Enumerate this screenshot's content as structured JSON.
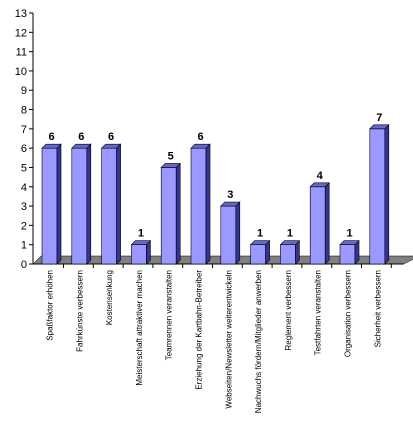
{
  "chart_data": {
    "type": "bar",
    "title": "",
    "xlabel": "",
    "ylabel": "",
    "ylim": [
      0,
      13
    ],
    "yticks": [
      0,
      1,
      2,
      3,
      4,
      5,
      6,
      7,
      8,
      9,
      10,
      11,
      12,
      13
    ],
    "grid": false,
    "legend": "none",
    "categories": [
      "Spaßfaktor erhöhen",
      "Fahrkünste verbessern",
      "Kostensenkung",
      "Meisterschaft attraktiver machen",
      "Teamrennen veranstalten",
      "Erziehung der Kartbahn-Betreiber",
      "Webseiten/Newsletter weiterentwickeln",
      "Nachwuchs fördern/Mitglieder anwerben",
      "Reglement verbessern",
      "Testfahrten veranstalten",
      "Organisation verbessern",
      "Sicherheit verbessern"
    ],
    "values": [
      6,
      6,
      6,
      1,
      5,
      6,
      3,
      1,
      1,
      4,
      1,
      7
    ],
    "colors": {
      "bar_front": "#9999ff",
      "bar_side": "#333399",
      "bar_top": "#6666cc",
      "floor": "#808080",
      "axis": "#000000"
    }
  }
}
